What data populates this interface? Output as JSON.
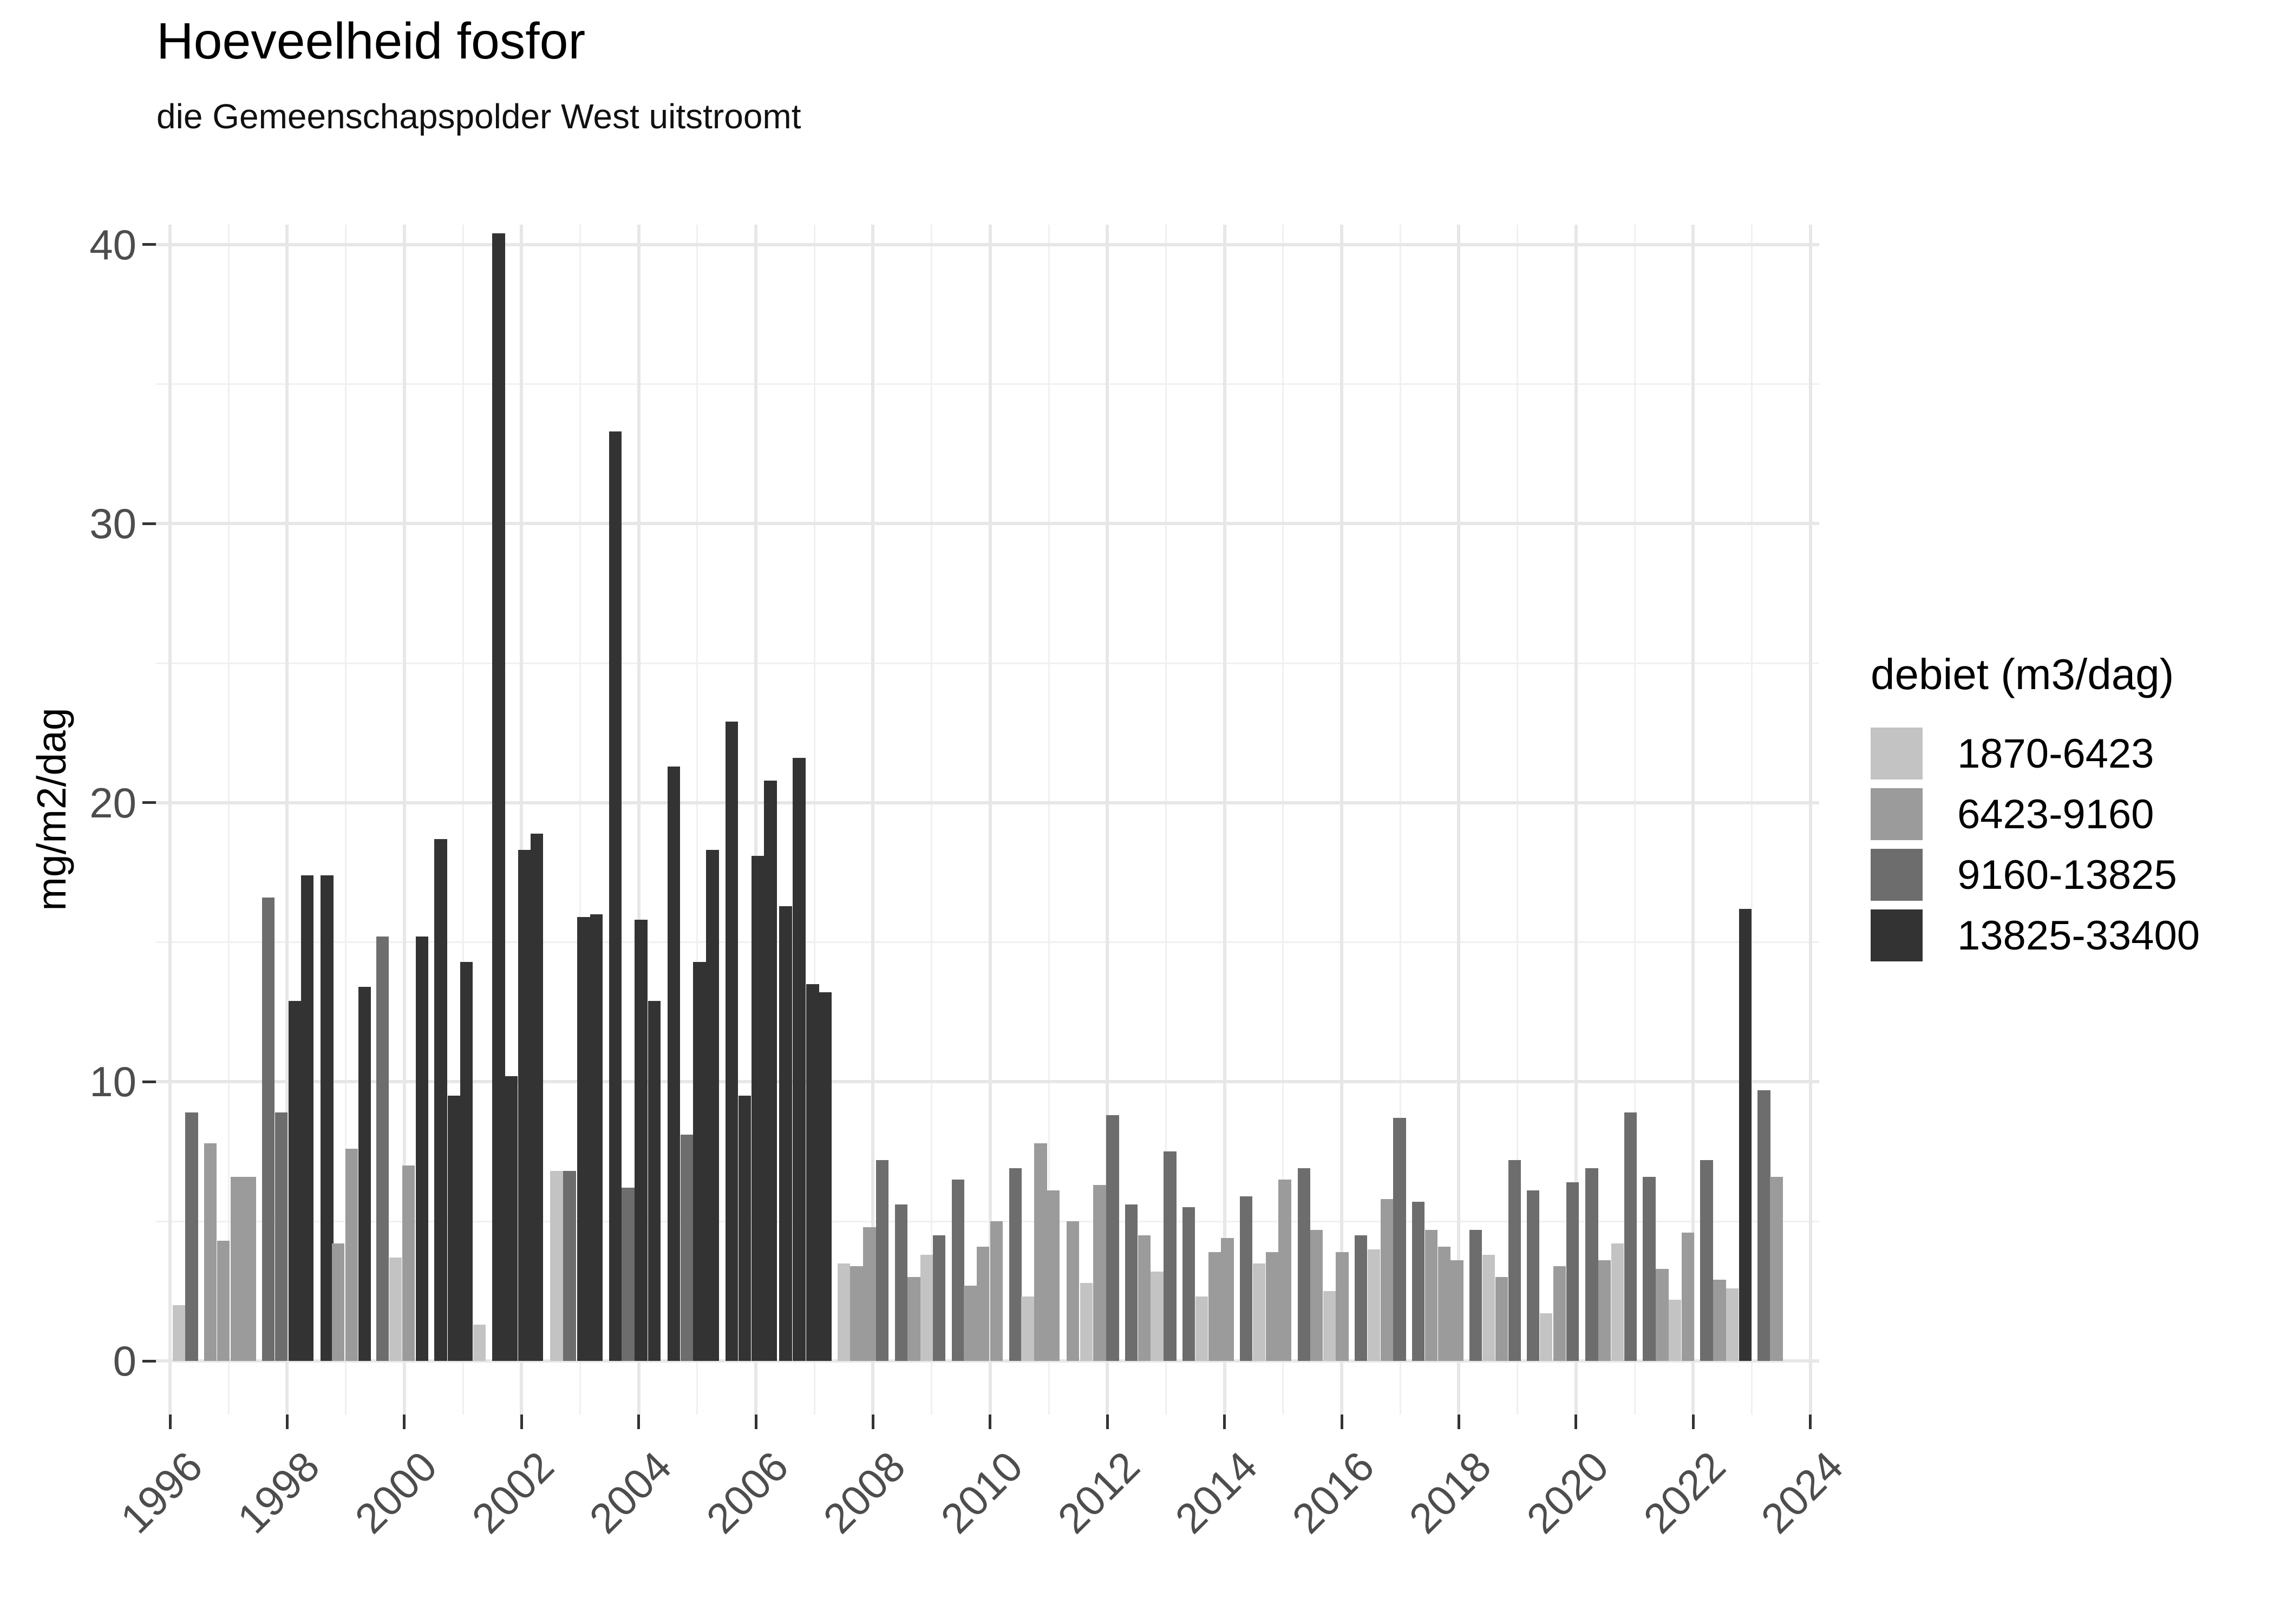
{
  "title": "Hoeveelheid fosfor",
  "subtitle": "die Gemeenschapspolder West uitstroomt",
  "y_axis": {
    "label": "mg/m2/dag",
    "ticks": [
      "0",
      "10",
      "20",
      "30",
      "40"
    ]
  },
  "x_axis": {
    "ticks": [
      "1996",
      "1998",
      "2000",
      "2002",
      "2004",
      "2006",
      "2008",
      "2010",
      "2012",
      "2014",
      "2016",
      "2018",
      "2020",
      "2022",
      "2024"
    ]
  },
  "legend": {
    "title": "debiet (m3/dag)",
    "items": [
      {
        "label": "1870-6423",
        "color": "#c3c3c3"
      },
      {
        "label": "6423-9160",
        "color": "#9b9b9b"
      },
      {
        "label": "9160-13825",
        "color": "#6d6d6d"
      },
      {
        "label": "13825-33400",
        "color": "#333333"
      }
    ]
  },
  "chart_data": {
    "type": "bar",
    "title": "Hoeveelheid fosfor",
    "subtitle": "die Gemeenschapspolder West uitstroomt",
    "xlabel": "",
    "ylabel": "mg/m2/dag",
    "legend_title": "debiet (m3/dag)",
    "legend_position": "right",
    "grid": "on",
    "xlim": [
      1995.7,
      2024.3
    ],
    "ylim": [
      0,
      40.7
    ],
    "x_major_ticks": [
      1996,
      1998,
      2000,
      2002,
      2004,
      2006,
      2008,
      2010,
      2012,
      2014,
      2016,
      2018,
      2020,
      2022,
      2024
    ],
    "y_major_ticks": [
      0,
      10,
      20,
      30,
      40
    ],
    "y_minor_ticks": [
      5,
      15,
      25,
      35
    ],
    "bar_width_years": 0.216,
    "levels": [
      "1870-6423",
      "6423-9160",
      "9160-13825",
      "13825-33400"
    ],
    "level_colors": [
      "#c3c3c3",
      "#9b9b9b",
      "#6d6d6d",
      "#333333"
    ],
    "bars_format": "[year_center, value_mg_m2_dag, debiet_level_index]",
    "bars": [
      [
        1996.15,
        2.0,
        0
      ],
      [
        1996.37,
        8.9,
        2
      ],
      [
        1996.69,
        7.8,
        1
      ],
      [
        1996.91,
        4.3,
        1
      ],
      [
        1997.14,
        6.6,
        1
      ],
      [
        1997.36,
        6.6,
        1
      ],
      [
        1997.68,
        16.6,
        2
      ],
      [
        1997.9,
        8.9,
        2
      ],
      [
        1998.13,
        12.9,
        3
      ],
      [
        1998.34,
        17.4,
        3
      ],
      [
        1998.68,
        17.4,
        3
      ],
      [
        1998.87,
        4.2,
        1
      ],
      [
        1999.1,
        7.6,
        1
      ],
      [
        1999.32,
        13.4,
        3
      ],
      [
        1999.63,
        15.2,
        2
      ],
      [
        1999.85,
        3.7,
        0
      ],
      [
        2000.07,
        7.0,
        1
      ],
      [
        2000.3,
        15.2,
        3
      ],
      [
        2000.62,
        18.7,
        3
      ],
      [
        2000.85,
        9.5,
        3
      ],
      [
        2001.06,
        14.3,
        3
      ],
      [
        2001.28,
        1.3,
        0
      ],
      [
        2001.61,
        40.4,
        3
      ],
      [
        2001.83,
        10.2,
        3
      ],
      [
        2002.05,
        18.3,
        3
      ],
      [
        2002.26,
        18.9,
        3
      ],
      [
        2002.6,
        6.8,
        0
      ],
      [
        2002.82,
        6.8,
        2
      ],
      [
        2003.06,
        15.9,
        3
      ],
      [
        2003.28,
        16.0,
        3
      ],
      [
        2003.6,
        33.3,
        3
      ],
      [
        2003.82,
        6.2,
        2
      ],
      [
        2004.04,
        15.8,
        3
      ],
      [
        2004.27,
        12.9,
        3
      ],
      [
        2004.6,
        21.3,
        3
      ],
      [
        2004.82,
        8.1,
        2
      ],
      [
        2005.04,
        14.3,
        3
      ],
      [
        2005.26,
        18.3,
        3
      ],
      [
        2005.59,
        22.9,
        3
      ],
      [
        2005.81,
        9.5,
        3
      ],
      [
        2006.03,
        18.1,
        3
      ],
      [
        2006.25,
        20.8,
        3
      ],
      [
        2006.51,
        16.3,
        3
      ],
      [
        2006.74,
        21.6,
        3
      ],
      [
        2006.97,
        13.5,
        3
      ],
      [
        2007.19,
        13.2,
        3
      ],
      [
        2007.5,
        3.5,
        0
      ],
      [
        2007.72,
        3.4,
        1
      ],
      [
        2007.94,
        4.8,
        1
      ],
      [
        2008.16,
        7.2,
        2
      ],
      [
        2008.48,
        5.6,
        2
      ],
      [
        2008.7,
        3.0,
        1
      ],
      [
        2008.92,
        3.8,
        0
      ],
      [
        2009.13,
        4.5,
        2
      ],
      [
        2009.45,
        6.5,
        2
      ],
      [
        2009.66,
        2.7,
        1
      ],
      [
        2009.88,
        4.1,
        1
      ],
      [
        2010.11,
        5.0,
        1
      ],
      [
        2010.43,
        6.9,
        2
      ],
      [
        2010.64,
        2.3,
        0
      ],
      [
        2010.86,
        7.8,
        1
      ],
      [
        2011.08,
        6.1,
        1
      ],
      [
        2011.41,
        5.0,
        1
      ],
      [
        2011.64,
        2.8,
        0
      ],
      [
        2011.87,
        6.3,
        1
      ],
      [
        2012.09,
        8.8,
        2
      ],
      [
        2012.41,
        5.6,
        2
      ],
      [
        2012.63,
        4.5,
        1
      ],
      [
        2012.85,
        3.2,
        0
      ],
      [
        2013.07,
        7.5,
        2
      ],
      [
        2013.39,
        5.5,
        2
      ],
      [
        2013.61,
        2.3,
        0
      ],
      [
        2013.83,
        3.9,
        1
      ],
      [
        2014.05,
        4.4,
        1
      ],
      [
        2014.37,
        5.9,
        2
      ],
      [
        2014.59,
        3.5,
        0
      ],
      [
        2014.81,
        3.9,
        1
      ],
      [
        2015.03,
        6.5,
        1
      ],
      [
        2015.36,
        6.9,
        2
      ],
      [
        2015.57,
        4.7,
        1
      ],
      [
        2015.79,
        2.5,
        0
      ],
      [
        2016.01,
        3.9,
        1
      ],
      [
        2016.33,
        4.5,
        2
      ],
      [
        2016.55,
        4.0,
        0
      ],
      [
        2016.77,
        5.8,
        1
      ],
      [
        2016.99,
        8.7,
        2
      ],
      [
        2017.31,
        5.7,
        2
      ],
      [
        2017.53,
        4.7,
        1
      ],
      [
        2017.75,
        4.1,
        1
      ],
      [
        2017.97,
        3.6,
        1
      ],
      [
        2018.29,
        4.7,
        2
      ],
      [
        2018.51,
        3.8,
        0
      ],
      [
        2018.73,
        3.0,
        1
      ],
      [
        2018.95,
        7.2,
        2
      ],
      [
        2019.27,
        6.1,
        2
      ],
      [
        2019.49,
        1.7,
        0
      ],
      [
        2019.72,
        3.4,
        1
      ],
      [
        2019.94,
        6.4,
        2
      ],
      [
        2020.27,
        6.9,
        2
      ],
      [
        2020.49,
        3.6,
        1
      ],
      [
        2020.71,
        4.2,
        0
      ],
      [
        2020.93,
        8.9,
        2
      ],
      [
        2021.25,
        6.6,
        2
      ],
      [
        2021.47,
        3.3,
        1
      ],
      [
        2021.69,
        2.2,
        0
      ],
      [
        2021.91,
        4.6,
        1
      ],
      [
        2022.23,
        7.2,
        2
      ],
      [
        2022.45,
        2.9,
        1
      ],
      [
        2022.67,
        2.6,
        0
      ],
      [
        2022.89,
        16.2,
        3
      ],
      [
        2023.21,
        9.7,
        2
      ],
      [
        2023.42,
        6.6,
        1
      ]
    ]
  }
}
